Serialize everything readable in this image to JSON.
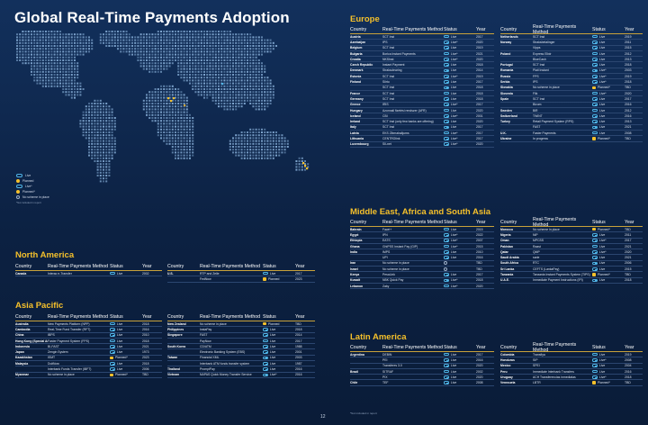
{
  "title": "Global Real-Time Payments Adoption",
  "page_number": "12",
  "legend": {
    "items": [
      {
        "label": "Live",
        "icon": "live-icon"
      },
      {
        "label": "Planned",
        "icon": "planned-icon"
      },
      {
        "label": "Live*",
        "icon": "live-icon"
      },
      {
        "label": "Planned*",
        "icon": "planned-icon"
      },
      {
        "label": "No scheme in place",
        "icon": "none-icon"
      }
    ],
    "note": "*Not included in report"
  },
  "colors": {
    "live": "#4fb4e6",
    "planned": "#f5c02b",
    "accent": "#f5c02b",
    "land": "#7fa6cf",
    "bg": "#0c2142"
  },
  "headers": {
    "country": "Country",
    "method": "Real-Time Payments Method",
    "status": "Status",
    "year": "Year"
  },
  "sections": {
    "north_america": {
      "title": "North America",
      "tables": [
        {
          "rows": [
            {
              "country": "Canada",
              "method": "Interac e-Transfer",
              "status": "Live",
              "year": "2002"
            }
          ]
        },
        {
          "rows": [
            {
              "country": "U.S.",
              "method": "RTP and Zelle",
              "status": "Live",
              "year": "2017"
            },
            {
              "country": "",
              "method": "FedNow",
              "status": "Planned",
              "year": "2023"
            }
          ]
        }
      ]
    },
    "asia_pacific": {
      "title": "Asia Pacific",
      "tables": [
        {
          "rows": [
            {
              "country": "Australia",
              "method": "New Payments Platform (NPP)",
              "status": "Live",
              "year": "2018"
            },
            {
              "country": "Cambodia",
              "method": "Real-Time Fund Transfer (RFT)",
              "status": "Live",
              "year": "2016"
            },
            {
              "country": "China",
              "method": "IBPS",
              "status": "Live",
              "year": "2010"
            },
            {
              "country": "Hong Kong (Special Administrative Region)",
              "method": "Faster Payment System (FPS)",
              "status": "Live",
              "year": "2018"
            },
            {
              "country": "Indonesia",
              "method": "BI-FAST",
              "status": "Live",
              "year": "2021"
            },
            {
              "country": "Japan",
              "method": "Zengin System",
              "status": "Live",
              "year": "1973"
            },
            {
              "country": "Kazakhstan",
              "method": "ISMT",
              "status": "Planned*",
              "year": "2023"
            },
            {
              "country": "Malaysia",
              "method": "DuitNow",
              "status": "Live",
              "year": "2018"
            },
            {
              "country": "",
              "method": "Interbank Funds Transfer (IBFT)",
              "status": "Live",
              "year": "2006"
            },
            {
              "country": "Myanmar",
              "method": "No scheme in place",
              "status": "Planned*",
              "year": "TBD"
            }
          ]
        },
        {
          "rows": [
            {
              "country": "New Zealand",
              "method": "No scheme in place",
              "status": "Planned",
              "year": "TBD"
            },
            {
              "country": "Philippines",
              "method": "InstaPay",
              "status": "Live",
              "year": "2018"
            },
            {
              "country": "Singapore",
              "method": "FAST",
              "status": "Live",
              "year": "2014"
            },
            {
              "country": "",
              "method": "PayNow",
              "status": "Live",
              "year": "2017"
            },
            {
              "country": "South Korea",
              "method": "CD/ATM",
              "status": "Live",
              "year": "1988"
            },
            {
              "country": "",
              "method": "Electronic Banking System (EBS)",
              "status": "Live",
              "year": "2001"
            },
            {
              "country": "Taiwan",
              "method": "Financial XML",
              "status": "Live",
              "year": "2003"
            },
            {
              "country": "",
              "method": "Interbank ATM funds transfer system",
              "status": "Live",
              "year": "1987"
            },
            {
              "country": "Thailand",
              "method": "PromptPay",
              "status": "Live",
              "year": "2016"
            },
            {
              "country": "Vietnam",
              "method": "NAPAS Quick Money Transfer Service",
              "status": "Live*",
              "year": "2016"
            }
          ]
        }
      ]
    },
    "europe": {
      "title": "Europe",
      "tables": [
        {
          "rows": [
            {
              "country": "Austria",
              "method": "SCT Inst",
              "status": "Live",
              "year": "2017"
            },
            {
              "country": "Azerbaijan",
              "method": "IPS",
              "status": "Live*",
              "year": "2020"
            },
            {
              "country": "Belgium",
              "method": "SCT Inst",
              "status": "Live",
              "year": "2019"
            },
            {
              "country": "Bulgaria",
              "method": "Borica Instant Payments",
              "status": "Live*",
              "year": "2021"
            },
            {
              "country": "Croatia",
              "method": "NKSInst",
              "status": "Live*",
              "year": "2020"
            },
            {
              "country": "Czech Republic",
              "method": "Instant Payment",
              "status": "Live",
              "year": "2018"
            },
            {
              "country": "Denmark",
              "method": "Straksclearing",
              "status": "Live",
              "year": "2014"
            },
            {
              "country": "Estonia",
              "method": "SCT Inst",
              "status": "Live*",
              "year": "2019"
            },
            {
              "country": "Finland",
              "method": "Siirto",
              "status": "Live",
              "year": "2017"
            },
            {
              "country": "",
              "method": "SCT Inst",
              "status": "Live",
              "year": "2018"
            },
            {
              "country": "France",
              "method": "SCT Inst",
              "status": "Live",
              "year": "2018"
            },
            {
              "country": "Germany",
              "method": "SCT Inst",
              "status": "Live",
              "year": "2018"
            },
            {
              "country": "Greece",
              "method": "IRIS",
              "status": "Live*",
              "year": "2017"
            },
            {
              "country": "Hungary",
              "method": "Azonnali fizetési rendszer (AFR)",
              "status": "Live",
              "year": "2020"
            },
            {
              "country": "Iceland",
              "method": "CBI",
              "status": "Live*",
              "year": "2001"
            },
            {
              "country": "Ireland",
              "method": "SCT Inst (only few banks are offering)",
              "status": "Live",
              "year": "2020"
            },
            {
              "country": "Italy",
              "method": "SCT Inst",
              "status": "Live",
              "year": "2017"
            },
            {
              "country": "Latvia",
              "method": "EKS Zibmaksājums",
              "status": "Live*",
              "year": "2017"
            },
            {
              "country": "Lithuania",
              "method": "CENTROlink",
              "status": "Live*",
              "year": "2017"
            },
            {
              "country": "Luxembourg",
              "method": "SILnet",
              "status": "Live*",
              "year": "2020"
            }
          ]
        },
        {
          "rows": [
            {
              "country": "Netherlands",
              "method": "SCT Inst",
              "status": "Live",
              "year": "2019"
            },
            {
              "country": "Norway",
              "method": "Straksbetalinger",
              "status": "Live",
              "year": "2011"
            },
            {
              "country": "",
              "method": "Vipps",
              "status": "Live",
              "year": "2015"
            },
            {
              "country": "Poland",
              "method": "Express Elixir",
              "status": "Live",
              "year": "2012"
            },
            {
              "country": "",
              "method": "BlueCash",
              "status": "Live",
              "year": "2013"
            },
            {
              "country": "Portugal",
              "method": "SCT Inst",
              "status": "Live",
              "year": "2018"
            },
            {
              "country": "Romania",
              "method": "Plati Instant",
              "status": "Live*",
              "year": "2003"
            },
            {
              "country": "Russia",
              "method": "FPS",
              "status": "Live*",
              "year": "2019"
            },
            {
              "country": "Serbia",
              "method": "IPS",
              "status": "Live*",
              "year": "2018"
            },
            {
              "country": "Slovakia",
              "method": "No scheme in place",
              "status": "Planned*",
              "year": "TBD"
            },
            {
              "country": "Slovenia",
              "method": "Flik",
              "status": "Live*",
              "year": "2020"
            },
            {
              "country": "Spain",
              "method": "SCT Inst",
              "status": "Live",
              "year": "2017"
            },
            {
              "country": "",
              "method": "Bizum",
              "status": "Live",
              "year": "2016"
            },
            {
              "country": "Sweden",
              "method": "BiR",
              "status": "Live",
              "year": "2012"
            },
            {
              "country": "Switzerland",
              "method": "TWINT",
              "status": "Live",
              "year": "2016"
            },
            {
              "country": "Turkey",
              "method": "Retail Payment System (RPS)",
              "status": "Live",
              "year": "2013"
            },
            {
              "country": "",
              "method": "FAST",
              "status": "Live",
              "year": "2021"
            },
            {
              "country": "U.K.",
              "method": "Faster Payments",
              "status": "Live",
              "year": "2008"
            },
            {
              "country": "Ukraine",
              "method": "In progress",
              "status": "Planned*",
              "year": "TBD"
            }
          ]
        }
      ]
    },
    "mea": {
      "title": "Middle East, Africa and South Asia",
      "tables": [
        {
          "rows": [
            {
              "country": "Bahrain",
              "method": "Fawri+",
              "status": "Live",
              "year": "2015"
            },
            {
              "country": "Egypt",
              "method": "IPN",
              "status": "Live*",
              "year": "2022"
            },
            {
              "country": "Ethiopia",
              "method": "EATS",
              "status": "Live*",
              "year": "2007"
            },
            {
              "country": "Ghana",
              "method": "GhIPSS Instant Pay (GIP)",
              "status": "Live*",
              "year": "2015"
            },
            {
              "country": "India",
              "method": "IMPS",
              "status": "Live",
              "year": "2010"
            },
            {
              "country": "",
              "method": "UPI",
              "status": "Live",
              "year": "2016"
            },
            {
              "country": "Iran",
              "method": "No scheme in place",
              "status": "None",
              "year": "TBD"
            },
            {
              "country": "Israel",
              "method": "No scheme in place",
              "status": "None",
              "year": "TBD"
            },
            {
              "country": "Kenya",
              "method": "PesaLink",
              "status": "Live",
              "year": "2017"
            },
            {
              "country": "Kuwait",
              "method": "NBK Quick Pay",
              "status": "Live*",
              "year": "2018"
            },
            {
              "country": "Lebanon",
              "method": "Zaky",
              "status": "Live*",
              "year": "2020"
            }
          ]
        },
        {
          "rows": [
            {
              "country": "Morocco",
              "method": "No scheme in place",
              "status": "Planned*",
              "year": "TBD"
            },
            {
              "country": "Nigeria",
              "method": "NIP",
              "status": "Live",
              "year": "2011"
            },
            {
              "country": "Oman",
              "method": "MPCSS",
              "status": "Live*",
              "year": "2017"
            },
            {
              "country": "Pakistan",
              "method": "Raast",
              "status": "Live",
              "year": "2021"
            },
            {
              "country": "Qatar",
              "method": "QMP",
              "status": "Live*",
              "year": "2020"
            },
            {
              "country": "Saudi Arabia",
              "method": "sarie",
              "status": "Live",
              "year": "2021"
            },
            {
              "country": "South Africa",
              "method": "RTC",
              "status": "Live",
              "year": "2006"
            },
            {
              "country": "Sri Lanka",
              "method": "CEFTS (LankaPay)",
              "status": "Live",
              "year": "2015"
            },
            {
              "country": "Tanzania",
              "method": "Tanzania Instant Payments System (TIPS)",
              "status": "Planned*",
              "year": "TBD"
            },
            {
              "country": "U.A.E.",
              "method": "Immediate Payment Instructions (IPI)",
              "status": "Live",
              "year": "2018"
            }
          ]
        }
      ]
    },
    "latin_america": {
      "title": "Latin America",
      "tables": [
        {
          "rows": [
            {
              "country": "Argentina",
              "method": "DEBIN",
              "status": "Live",
              "year": "2017"
            },
            {
              "country": "",
              "method": "PEI",
              "status": "Live",
              "year": "2016"
            },
            {
              "country": "",
              "method": "Transferes 3.0",
              "status": "Live",
              "year": "2020"
            },
            {
              "country": "Brazil",
              "method": "SITRAF",
              "status": "Live",
              "year": "2002"
            },
            {
              "country": "",
              "method": "PIX",
              "status": "Live",
              "year": "2020"
            },
            {
              "country": "Chile",
              "method": "TEF",
              "status": "Live",
              "year": "2008"
            }
          ]
        },
        {
          "rows": [
            {
              "country": "Colombia",
              "method": "Transfiya",
              "status": "Live",
              "year": "2019"
            },
            {
              "country": "Honduras",
              "method": "SIP",
              "status": "Live*",
              "year": "2008"
            },
            {
              "country": "Mexico",
              "method": "SPEI",
              "status": "Live",
              "year": "2004"
            },
            {
              "country": "Peru",
              "method": "Immediate Interbank Transfers",
              "status": "Live",
              "year": "2016"
            },
            {
              "country": "Uruguay",
              "method": "ACH Transferencias inmediatas",
              "status": "Live*",
              "year": "2018"
            },
            {
              "country": "Venezuela",
              "method": "LBTR",
              "status": "Planned*",
              "year": "TBD"
            }
          ]
        }
      ],
      "footnote": "*Not included in report"
    }
  }
}
